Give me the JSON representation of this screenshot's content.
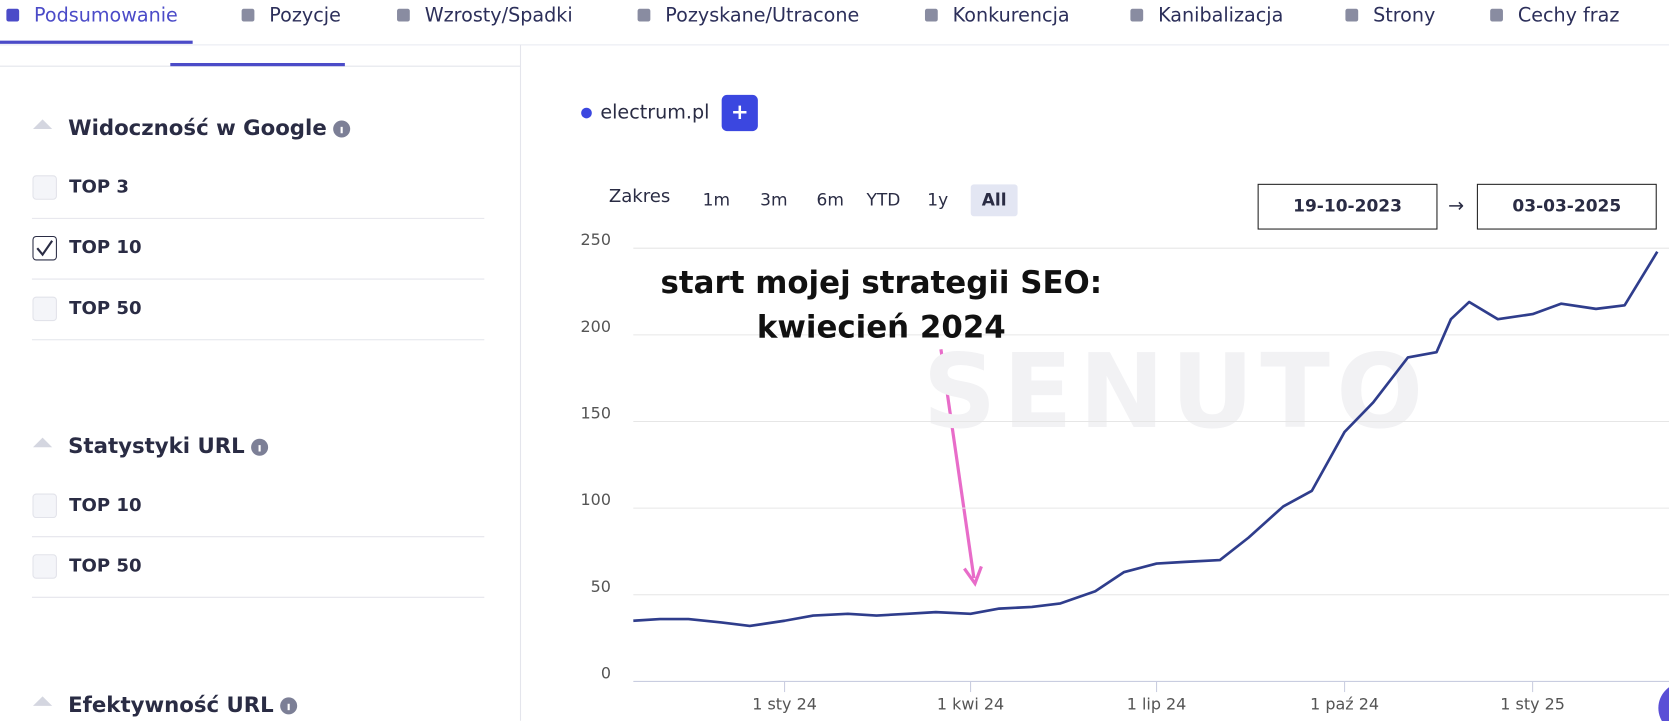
{
  "nav": {
    "tabs": [
      "Podsumowanie",
      "Pozycje",
      "Wzrosty/Spadki",
      "Pozyskane/Utracone",
      "Konkurencja",
      "Kanibalizacja",
      "Strony",
      "Cechy fraz"
    ],
    "active": 0
  },
  "sidebar": {
    "sections": [
      {
        "title": "Widoczność w Google",
        "items": [
          {
            "label": "TOP 3",
            "checked": false
          },
          {
            "label": "TOP 10",
            "checked": true
          },
          {
            "label": "TOP 50",
            "checked": false
          }
        ]
      },
      {
        "title": "Statystyki URL",
        "items": [
          {
            "label": "TOP 10",
            "checked": false
          },
          {
            "label": "TOP 50",
            "checked": false
          }
        ]
      },
      {
        "title": "Efektywność URL",
        "items": []
      }
    ]
  },
  "controls": {
    "add_button": "+",
    "range_label": "Zakres",
    "ranges": [
      "1m",
      "3m",
      "6m",
      "YTD",
      "1y",
      "All"
    ],
    "active_range": 5,
    "date_from": "19-10-2023",
    "arrow": "→",
    "date_to": "03-03-2025"
  },
  "chart_data": {
    "type": "line",
    "annotation": [
      "start mojej strategii SEO:",
      "kwiecień 2024"
    ],
    "watermark": "SENUTO",
    "x": [
      "2023-10-19",
      "2023-11-01",
      "2023-11-15",
      "2023-12-01",
      "2023-12-15",
      "2024-01-01",
      "2024-01-15",
      "2024-02-01",
      "2024-02-15",
      "2024-03-01",
      "2024-03-15",
      "2024-04-01",
      "2024-04-15",
      "2024-05-01",
      "2024-05-15",
      "2024-06-01",
      "2024-06-15",
      "2024-07-01",
      "2024-07-15",
      "2024-08-01",
      "2024-08-15",
      "2024-09-01",
      "2024-09-15",
      "2024-10-01",
      "2024-10-15",
      "2024-11-01",
      "2024-11-15",
      "2024-11-22",
      "2024-12-01",
      "2024-12-15",
      "2025-01-01",
      "2025-01-15",
      "2025-02-01",
      "2025-02-15",
      "2025-03-03"
    ],
    "series": [
      {
        "name": "electrum.pl",
        "color": "#2f3d8c",
        "values": [
          35,
          36,
          36,
          34,
          32,
          35,
          38,
          39,
          38,
          39,
          40,
          39,
          42,
          43,
          45,
          52,
          63,
          68,
          69,
          70,
          83,
          101,
          110,
          144,
          161,
          187,
          190,
          209,
          219,
          209,
          212,
          218,
          215,
          217,
          248
        ]
      }
    ],
    "xlim": [
      "2023-10-19",
      "2025-03-03"
    ],
    "xticks": [
      {
        "value": "2024-01-01",
        "label": "1 sty 24"
      },
      {
        "value": "2024-04-01",
        "label": "1 kwi 24"
      },
      {
        "value": "2024-07-01",
        "label": "1 lip 24"
      },
      {
        "value": "2024-10-01",
        "label": "1 paź 24"
      },
      {
        "value": "2025-01-01",
        "label": "1 sty 25"
      }
    ],
    "ylim": [
      0,
      250
    ],
    "yticks": [
      0,
      50,
      100,
      150,
      200,
      250
    ],
    "grid": true
  }
}
